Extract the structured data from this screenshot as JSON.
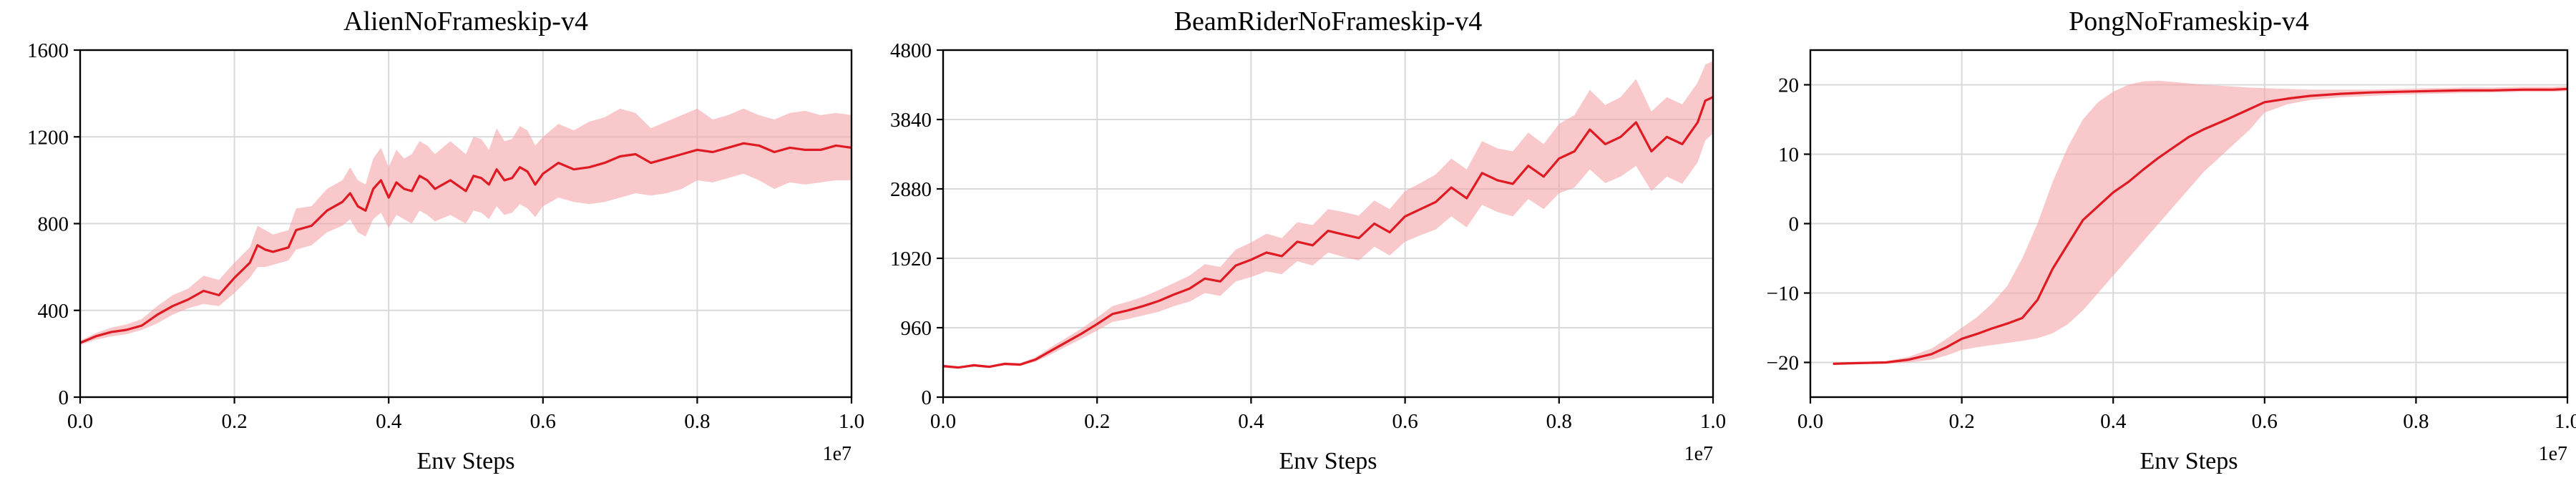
{
  "colors": {
    "line": "#e01a22",
    "band": "#f4a3a6",
    "grid": "#d9d9d9"
  },
  "chart_data": [
    {
      "type": "line",
      "title": "AlienNoFrameskip-v4",
      "xlabel": "Env Steps",
      "x_multiplier": "1e7",
      "xlim": [
        0,
        1.0
      ],
      "ylim": [
        0,
        1600
      ],
      "xticks": [
        0.0,
        0.2,
        0.4,
        0.6,
        0.8,
        1.0
      ],
      "xtick_labels": [
        "0.0",
        "0.2",
        "0.4",
        "0.6",
        "0.8",
        "1.0"
      ],
      "yticks": [
        0,
        400,
        800,
        1200,
        1600
      ],
      "ytick_labels": [
        "0",
        "400",
        "800",
        "1200",
        "1600"
      ],
      "grid": true,
      "series": [
        {
          "x": [
            0.0,
            0.02,
            0.04,
            0.06,
            0.08,
            0.1,
            0.12,
            0.14,
            0.16,
            0.18,
            0.2,
            0.22,
            0.23,
            0.24,
            0.25,
            0.27,
            0.28,
            0.3,
            0.32,
            0.34,
            0.35,
            0.36,
            0.37,
            0.38,
            0.39,
            0.4,
            0.41,
            0.42,
            0.43,
            0.44,
            0.45,
            0.46,
            0.48,
            0.5,
            0.51,
            0.52,
            0.53,
            0.54,
            0.55,
            0.56,
            0.57,
            0.58,
            0.59,
            0.6,
            0.62,
            0.64,
            0.66,
            0.68,
            0.7,
            0.72,
            0.74,
            0.76,
            0.78,
            0.8,
            0.82,
            0.84,
            0.86,
            0.88,
            0.9,
            0.92,
            0.94,
            0.96,
            0.98,
            1.0
          ],
          "y": [
            250,
            280,
            300,
            310,
            330,
            380,
            420,
            450,
            490,
            470,
            550,
            620,
            700,
            680,
            670,
            690,
            770,
            790,
            860,
            900,
            940,
            880,
            860,
            960,
            1000,
            920,
            990,
            960,
            950,
            1020,
            1000,
            960,
            1000,
            950,
            1020,
            1010,
            980,
            1050,
            1000,
            1010,
            1060,
            1040,
            980,
            1030,
            1080,
            1050,
            1060,
            1080,
            1110,
            1120,
            1080,
            1100,
            1120,
            1140,
            1130,
            1150,
            1170,
            1160,
            1130,
            1150,
            1140,
            1140,
            1160,
            1150
          ],
          "lower": [
            240,
            265,
            280,
            290,
            310,
            340,
            380,
            410,
            430,
            420,
            480,
            550,
            600,
            600,
            610,
            630,
            680,
            700,
            760,
            790,
            820,
            760,
            740,
            820,
            850,
            780,
            840,
            820,
            800,
            860,
            840,
            810,
            840,
            800,
            860,
            850,
            820,
            880,
            840,
            850,
            890,
            870,
            830,
            880,
            920,
            900,
            890,
            900,
            920,
            940,
            930,
            940,
            960,
            1000,
            990,
            1010,
            1030,
            1000,
            960,
            990,
            980,
            990,
            1000,
            1000
          ],
          "upper": [
            260,
            295,
            320,
            335,
            360,
            420,
            470,
            500,
            560,
            540,
            620,
            690,
            790,
            770,
            750,
            770,
            870,
            880,
            960,
            1000,
            1060,
            1000,
            980,
            1100,
            1150,
            1060,
            1140,
            1100,
            1120,
            1180,
            1160,
            1120,
            1180,
            1120,
            1200,
            1190,
            1140,
            1240,
            1180,
            1190,
            1250,
            1230,
            1160,
            1200,
            1260,
            1230,
            1270,
            1290,
            1330,
            1310,
            1240,
            1270,
            1300,
            1330,
            1280,
            1300,
            1330,
            1300,
            1280,
            1310,
            1320,
            1300,
            1310,
            1300
          ]
        }
      ]
    },
    {
      "type": "line",
      "title": "BeamRiderNoFrameskip-v4",
      "xlabel": "Env Steps",
      "x_multiplier": "1e7",
      "xlim": [
        0,
        1.0
      ],
      "ylim": [
        0,
        4800
      ],
      "xticks": [
        0.0,
        0.2,
        0.4,
        0.6,
        0.8,
        1.0
      ],
      "xtick_labels": [
        "0.0",
        "0.2",
        "0.4",
        "0.6",
        "0.8",
        "1.0"
      ],
      "yticks": [
        0,
        960,
        1920,
        2880,
        3840,
        4800
      ],
      "ytick_labels": [
        "0",
        "960",
        "1920",
        "2880",
        "3840",
        "4800"
      ],
      "grid": true,
      "series": [
        {
          "x": [
            0.0,
            0.02,
            0.04,
            0.06,
            0.08,
            0.1,
            0.12,
            0.14,
            0.16,
            0.18,
            0.2,
            0.22,
            0.24,
            0.26,
            0.28,
            0.3,
            0.32,
            0.34,
            0.36,
            0.38,
            0.4,
            0.42,
            0.44,
            0.46,
            0.48,
            0.5,
            0.52,
            0.54,
            0.56,
            0.58,
            0.6,
            0.62,
            0.64,
            0.66,
            0.68,
            0.7,
            0.72,
            0.74,
            0.76,
            0.78,
            0.8,
            0.82,
            0.84,
            0.86,
            0.88,
            0.9,
            0.92,
            0.94,
            0.96,
            0.98,
            0.99,
            1.0
          ],
          "y": [
            430,
            410,
            440,
            420,
            460,
            450,
            520,
            640,
            760,
            880,
            1010,
            1150,
            1200,
            1260,
            1330,
            1420,
            1500,
            1640,
            1600,
            1820,
            1900,
            2000,
            1950,
            2150,
            2100,
            2300,
            2250,
            2200,
            2400,
            2280,
            2500,
            2600,
            2700,
            2900,
            2750,
            3100,
            3000,
            2950,
            3200,
            3050,
            3300,
            3400,
            3700,
            3500,
            3600,
            3800,
            3400,
            3600,
            3500,
            3800,
            4100,
            4150
          ],
          "lower": [
            410,
            395,
            420,
            405,
            440,
            430,
            490,
            590,
            700,
            810,
            920,
            1040,
            1080,
            1130,
            1180,
            1260,
            1320,
            1440,
            1400,
            1600,
            1660,
            1740,
            1700,
            1880,
            1820,
            2000,
            1940,
            1890,
            2080,
            1960,
            2150,
            2240,
            2320,
            2500,
            2350,
            2660,
            2560,
            2500,
            2740,
            2600,
            2820,
            2900,
            3150,
            2960,
            3050,
            3200,
            2850,
            3050,
            2950,
            3250,
            3550,
            3650
          ],
          "upper": [
            450,
            425,
            460,
            435,
            480,
            470,
            550,
            690,
            820,
            950,
            1100,
            1260,
            1320,
            1390,
            1480,
            1580,
            1680,
            1840,
            1800,
            2040,
            2140,
            2260,
            2200,
            2420,
            2380,
            2600,
            2560,
            2510,
            2720,
            2600,
            2850,
            2960,
            3080,
            3300,
            3150,
            3540,
            3440,
            3400,
            3660,
            3500,
            3780,
            3900,
            4250,
            4040,
            4150,
            4400,
            3950,
            4150,
            4050,
            4350,
            4600,
            4650
          ]
        }
      ]
    },
    {
      "type": "line",
      "title": "PongNoFrameskip-v4",
      "xlabel": "Env Steps",
      "x_multiplier": "1e7",
      "xlim": [
        0,
        1.0
      ],
      "ylim": [
        -25,
        25
      ],
      "xticks": [
        0.0,
        0.2,
        0.4,
        0.6,
        0.8,
        1.0
      ],
      "xtick_labels": [
        "0.0",
        "0.2",
        "0.4",
        "0.6",
        "0.8",
        "1.0"
      ],
      "yticks": [
        -20,
        -10,
        0,
        10,
        20
      ],
      "ytick_labels": [
        "−20",
        "−10",
        "0",
        "10",
        "20"
      ],
      "grid": true,
      "series": [
        {
          "x": [
            0.03,
            0.06,
            0.1,
            0.13,
            0.16,
            0.18,
            0.2,
            0.22,
            0.24,
            0.26,
            0.28,
            0.3,
            0.32,
            0.34,
            0.36,
            0.38,
            0.4,
            0.42,
            0.44,
            0.46,
            0.48,
            0.5,
            0.52,
            0.55,
            0.58,
            0.6,
            0.63,
            0.66,
            0.7,
            0.74,
            0.78,
            0.82,
            0.86,
            0.9,
            0.94,
            0.98,
            1.0
          ],
          "y": [
            -20.2,
            -20.1,
            -20.0,
            -19.6,
            -18.8,
            -17.8,
            -16.6,
            -15.9,
            -15.1,
            -14.4,
            -13.6,
            -11.0,
            -6.5,
            -3.0,
            0.5,
            2.5,
            4.5,
            6.0,
            7.8,
            9.5,
            11.0,
            12.5,
            13.6,
            15.0,
            16.5,
            17.5,
            18.0,
            18.4,
            18.7,
            18.9,
            19.0,
            19.1,
            19.2,
            19.2,
            19.3,
            19.3,
            19.4
          ],
          "lower": [
            -20.3,
            -20.2,
            -20.2,
            -20.0,
            -19.6,
            -19.0,
            -18.2,
            -17.8,
            -17.5,
            -17.2,
            -16.9,
            -16.5,
            -15.8,
            -14.5,
            -12.5,
            -10.0,
            -7.5,
            -5.0,
            -2.5,
            0.0,
            2.5,
            5.0,
            7.5,
            10.5,
            13.5,
            16.0,
            17.2,
            17.8,
            18.2,
            18.4,
            18.6,
            18.7,
            18.8,
            18.9,
            19.0,
            19.0,
            19.1
          ],
          "upper": [
            -20.1,
            -20.0,
            -19.8,
            -19.2,
            -18.0,
            -16.6,
            -15.0,
            -13.5,
            -11.5,
            -9.0,
            -5.0,
            0.0,
            6.0,
            11.0,
            15.0,
            17.5,
            19.0,
            20.0,
            20.5,
            20.6,
            20.4,
            20.2,
            20.0,
            19.8,
            19.6,
            19.5,
            19.4,
            19.3,
            19.3,
            19.3,
            19.4,
            19.5,
            19.6,
            19.6,
            19.7,
            19.7,
            19.8
          ]
        }
      ]
    }
  ]
}
